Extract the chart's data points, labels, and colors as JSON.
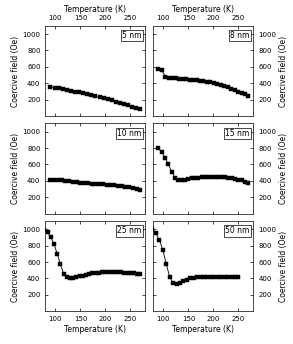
{
  "panels": [
    {
      "label": "5 nm",
      "x_start": 90,
      "x_end": 270,
      "y_data": [
        350,
        345,
        338,
        330,
        320,
        310,
        300,
        290,
        280,
        268,
        255,
        242,
        230,
        218,
        205,
        192,
        178,
        162,
        145,
        130,
        115,
        100,
        90
      ],
      "ylim": [
        0,
        1100
      ],
      "yticks": [
        200,
        400,
        600,
        800,
        1000
      ],
      "top_xaxis": true,
      "bottom_xaxis": false,
      "left_ylabel": true,
      "right_ylabel": false
    },
    {
      "label": "8 nm",
      "x_start": 90,
      "x_end": 270,
      "y_data": [
        570,
        560,
        480,
        468,
        462,
        460,
        455,
        450,
        448,
        445,
        440,
        435,
        430,
        425,
        418,
        410,
        400,
        390,
        378,
        365,
        350,
        335,
        318,
        300,
        285,
        265,
        250
      ],
      "ylim": [
        0,
        1100
      ],
      "yticks": [
        200,
        400,
        600,
        800,
        1000
      ],
      "top_xaxis": true,
      "bottom_xaxis": false,
      "left_ylabel": false,
      "right_ylabel": true
    },
    {
      "label": "10 nm",
      "x_start": 90,
      "x_end": 270,
      "y_data": [
        415,
        412,
        408,
        405,
        400,
        395,
        390,
        385,
        380,
        375,
        372,
        368,
        365,
        362,
        358,
        355,
        350,
        345,
        340,
        335,
        328,
        320,
        310,
        300,
        292
      ],
      "ylim": [
        0,
        1100
      ],
      "yticks": [
        200,
        400,
        600,
        800,
        1000
      ],
      "top_xaxis": false,
      "bottom_xaxis": false,
      "left_ylabel": true,
      "right_ylabel": false
    },
    {
      "label": "15 nm",
      "x_start": 90,
      "x_end": 270,
      "y_data": [
        800,
        750,
        680,
        600,
        510,
        440,
        415,
        410,
        408,
        420,
        430,
        435,
        440,
        445,
        448,
        450,
        450,
        450,
        448,
        445,
        442,
        438,
        432,
        425,
        415,
        405,
        390,
        375
      ],
      "ylim": [
        0,
        1100
      ],
      "yticks": [
        200,
        400,
        600,
        800,
        1000
      ],
      "top_xaxis": false,
      "bottom_xaxis": false,
      "left_ylabel": false,
      "right_ylabel": true
    },
    {
      "label": "25 nm",
      "x_start": 78,
      "x_end": 270,
      "y_data": [
        995,
        960,
        900,
        820,
        700,
        570,
        460,
        420,
        408,
        405,
        415,
        425,
        435,
        445,
        455,
        462,
        468,
        472,
        475,
        478,
        480,
        480,
        478,
        476,
        474,
        472,
        468,
        465,
        462,
        460,
        458
      ],
      "ylim": [
        0,
        1100
      ],
      "yticks": [
        200,
        400,
        600,
        800,
        1000
      ],
      "top_xaxis": false,
      "bottom_xaxis": true,
      "left_ylabel": true,
      "right_ylabel": false
    },
    {
      "label": "50 nm",
      "x_start": 78,
      "x_end": 250,
      "y_data": [
        1000,
        950,
        870,
        750,
        580,
        420,
        340,
        330,
        345,
        365,
        385,
        400,
        410,
        415,
        418,
        420,
        422,
        422,
        422,
        421,
        420,
        420,
        420,
        419,
        418,
        418
      ],
      "ylim": [
        0,
        1100
      ],
      "yticks": [
        200,
        400,
        600,
        800,
        1000
      ],
      "top_xaxis": false,
      "bottom_xaxis": true,
      "left_ylabel": false,
      "right_ylabel": true
    }
  ],
  "marker": "s",
  "marker_size": 2.2,
  "marker_color": "black",
  "line_color": "black",
  "line_width": 0.6,
  "xlabel": "Temperature (K)",
  "ylabel": "Coercive field (Oe)",
  "xticks": [
    100,
    150,
    200,
    250
  ],
  "xlim": [
    80,
    280
  ],
  "figure_bg": "white"
}
